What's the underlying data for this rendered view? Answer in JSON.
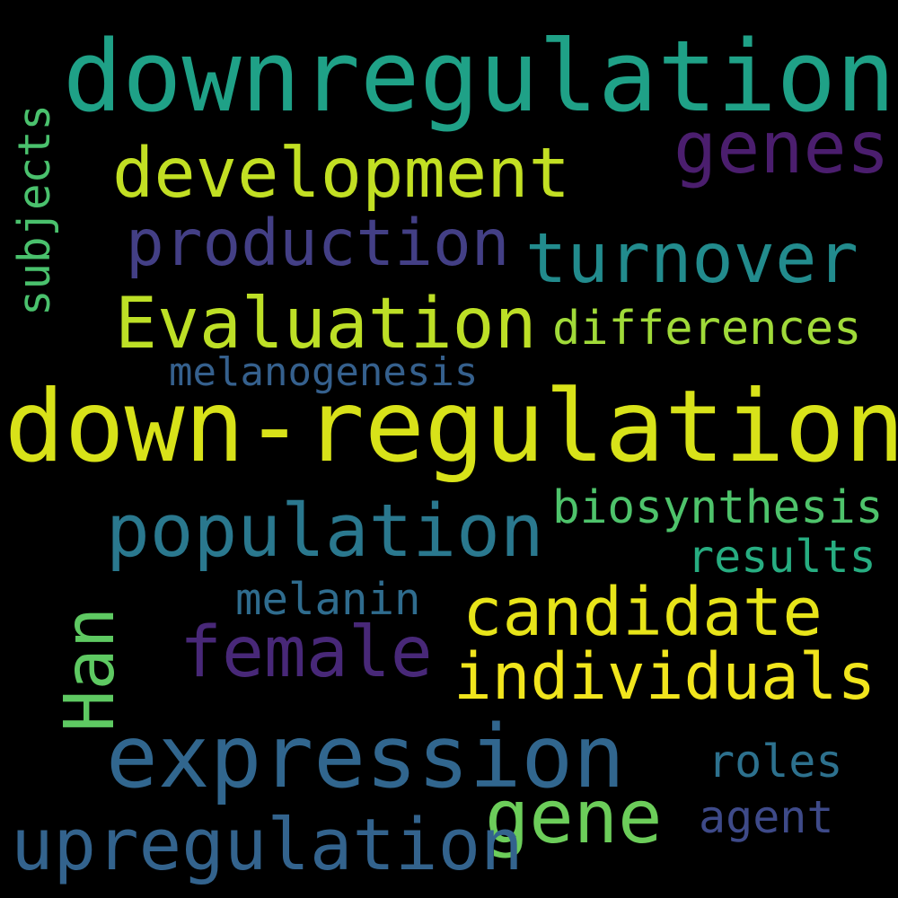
{
  "background": "#000000",
  "words": [
    {
      "id": "downregulation",
      "text": "downregulation",
      "color": "#1fa187"
    },
    {
      "id": "genes",
      "text": "genes",
      "color": "#4b1e6e"
    },
    {
      "id": "development",
      "text": "development",
      "color": "#c2df23"
    },
    {
      "id": "production",
      "text": "production",
      "color": "#433f85"
    },
    {
      "id": "turnover",
      "text": "turnover",
      "color": "#228b8d"
    },
    {
      "id": "evaluation",
      "text": "Evaluation",
      "color": "#bddf26"
    },
    {
      "id": "differences",
      "text": "differences",
      "color": "#a0da39"
    },
    {
      "id": "melanogenesis",
      "text": "melanogenesis",
      "color": "#35608d"
    },
    {
      "id": "down-regulation",
      "text": "down-regulation",
      "color": "#d8e219"
    },
    {
      "id": "subjects",
      "text": "subjects",
      "color": "#4ac16d"
    },
    {
      "id": "population",
      "text": "population",
      "color": "#2a788e"
    },
    {
      "id": "biosynthesis",
      "text": "biosynthesis",
      "color": "#4ec36b"
    },
    {
      "id": "results",
      "text": "results",
      "color": "#27ad81"
    },
    {
      "id": "melanin",
      "text": "melanin",
      "color": "#2f6c8e"
    },
    {
      "id": "candidate",
      "text": "candidate",
      "color": "#e7e419"
    },
    {
      "id": "han",
      "text": "Han",
      "color": "#5ec962"
    },
    {
      "id": "female",
      "text": "female",
      "color": "#482878"
    },
    {
      "id": "individuals",
      "text": "individuals",
      "color": "#f1e51d"
    },
    {
      "id": "expression",
      "text": "expression",
      "color": "#31668e"
    },
    {
      "id": "roles",
      "text": "roles",
      "color": "#2d718e"
    },
    {
      "id": "gene",
      "text": "gene",
      "color": "#6ccd5a"
    },
    {
      "id": "agent",
      "text": "agent",
      "color": "#3e4a89"
    },
    {
      "id": "upregulation",
      "text": "upregulation",
      "color": "#33638d"
    }
  ]
}
